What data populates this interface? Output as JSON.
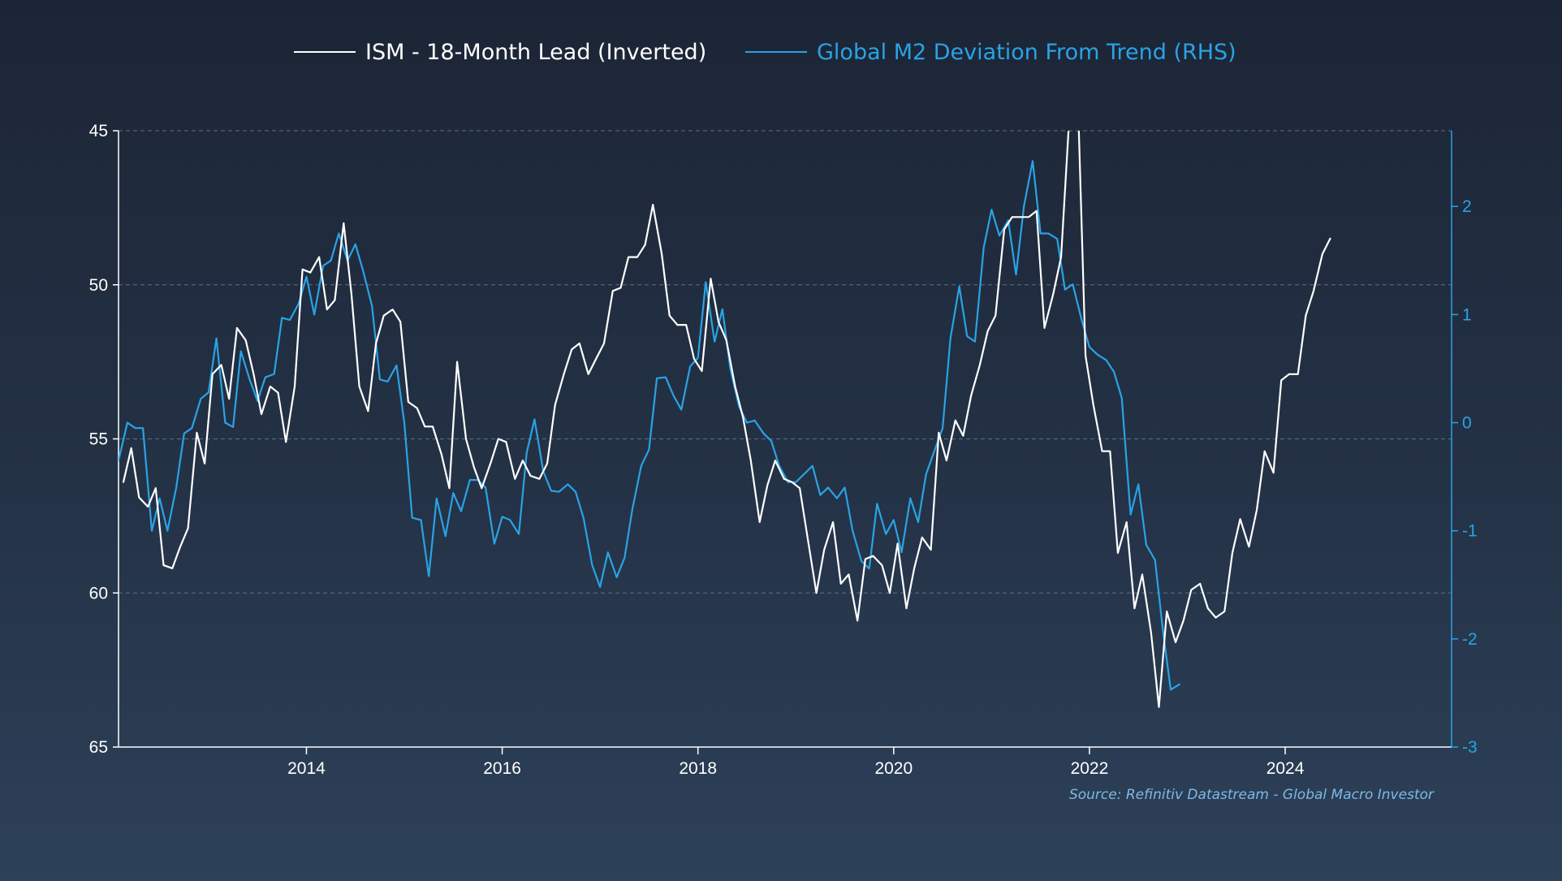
{
  "colors": {
    "ism": "#ffffff",
    "m2": "#29a3e6",
    "axis_left": "#ffffff",
    "axis_right": "#29a3e6",
    "grid": "#5f6f83",
    "source": "#7fb8e6"
  },
  "chart_data": {
    "type": "line",
    "legend": [
      {
        "label": "ISM - 18-Month Lead (Inverted)",
        "color": "#ffffff"
      },
      {
        "label": "Global M2 Deviation From Trend (RHS)",
        "color": "#29a3e6"
      }
    ],
    "source": "Source: Refinitiv Datastream - Global Macro Investor",
    "x_axis": {
      "range": [
        2012.08,
        2025.7
      ],
      "ticks": [
        "2014",
        "2016",
        "2018",
        "2020",
        "2022",
        "2024"
      ]
    },
    "y_left": {
      "range": [
        45,
        65
      ],
      "inverted": true,
      "ticks": [
        "45",
        "50",
        "55",
        "60",
        "65"
      ],
      "grid": true
    },
    "y_right": {
      "range": [
        -3,
        2.7
      ],
      "ticks": [
        "2",
        "1",
        "0",
        "-1",
        "-2",
        "-3"
      ]
    },
    "series": [
      {
        "name": "ISM - 18-Month Lead (Inverted)",
        "axis": "left",
        "points": [
          [
            2012.13,
            56.4
          ],
          [
            2012.21,
            55.3
          ],
          [
            2012.29,
            56.9
          ],
          [
            2012.38,
            57.2
          ],
          [
            2012.46,
            56.6
          ],
          [
            2012.54,
            59.1
          ],
          [
            2012.63,
            59.2
          ],
          [
            2012.71,
            58.5
          ],
          [
            2012.79,
            57.9
          ],
          [
            2012.88,
            54.8
          ],
          [
            2012.96,
            55.8
          ],
          [
            2013.04,
            52.9
          ],
          [
            2013.13,
            52.6
          ],
          [
            2013.21,
            53.7
          ],
          [
            2013.29,
            51.4
          ],
          [
            2013.38,
            51.8
          ],
          [
            2013.46,
            52.9
          ],
          [
            2013.54,
            54.2
          ],
          [
            2013.63,
            53.3
          ],
          [
            2013.71,
            53.5
          ],
          [
            2013.79,
            55.1
          ],
          [
            2013.88,
            53.3
          ],
          [
            2013.96,
            49.5
          ],
          [
            2014.04,
            49.6
          ],
          [
            2014.13,
            49.1
          ],
          [
            2014.21,
            50.8
          ],
          [
            2014.29,
            50.5
          ],
          [
            2014.38,
            48.0
          ],
          [
            2014.46,
            50.3
          ],
          [
            2014.54,
            53.3
          ],
          [
            2014.63,
            54.1
          ],
          [
            2014.71,
            51.9
          ],
          [
            2014.79,
            51.0
          ],
          [
            2014.88,
            50.8
          ],
          [
            2014.96,
            51.2
          ],
          [
            2015.04,
            53.8
          ],
          [
            2015.13,
            54.0
          ],
          [
            2015.21,
            54.6
          ],
          [
            2015.29,
            54.6
          ],
          [
            2015.38,
            55.5
          ],
          [
            2015.46,
            56.6
          ],
          [
            2015.54,
            52.5
          ],
          [
            2015.63,
            55.0
          ],
          [
            2015.71,
            55.9
          ],
          [
            2015.79,
            56.6
          ],
          [
            2015.88,
            55.8
          ],
          [
            2015.96,
            55.0
          ],
          [
            2016.04,
            55.1
          ],
          [
            2016.13,
            56.3
          ],
          [
            2016.21,
            55.7
          ],
          [
            2016.29,
            56.2
          ],
          [
            2016.38,
            56.3
          ],
          [
            2016.46,
            55.8
          ],
          [
            2016.54,
            53.9
          ],
          [
            2016.63,
            52.9
          ],
          [
            2016.71,
            52.1
          ],
          [
            2016.79,
            51.9
          ],
          [
            2016.88,
            52.9
          ],
          [
            2016.96,
            52.4
          ],
          [
            2017.04,
            51.9
          ],
          [
            2017.13,
            50.2
          ],
          [
            2017.21,
            50.1
          ],
          [
            2017.29,
            49.1
          ],
          [
            2017.38,
            49.1
          ],
          [
            2017.46,
            48.7
          ],
          [
            2017.54,
            47.4
          ],
          [
            2017.63,
            49.0
          ],
          [
            2017.71,
            51.0
          ],
          [
            2017.79,
            51.3
          ],
          [
            2017.88,
            51.3
          ],
          [
            2017.96,
            52.4
          ],
          [
            2018.04,
            52.8
          ],
          [
            2018.13,
            49.8
          ],
          [
            2018.21,
            51.2
          ],
          [
            2018.29,
            51.8
          ],
          [
            2018.38,
            53.3
          ],
          [
            2018.46,
            54.3
          ],
          [
            2018.54,
            55.7
          ],
          [
            2018.63,
            57.7
          ],
          [
            2018.71,
            56.5
          ],
          [
            2018.79,
            55.7
          ],
          [
            2018.88,
            56.3
          ],
          [
            2018.96,
            56.4
          ],
          [
            2019.04,
            56.6
          ],
          [
            2019.13,
            58.4
          ],
          [
            2019.21,
            60.0
          ],
          [
            2019.29,
            58.6
          ],
          [
            2019.38,
            57.7
          ],
          [
            2019.46,
            59.7
          ],
          [
            2019.54,
            59.4
          ],
          [
            2019.63,
            60.9
          ],
          [
            2019.71,
            58.9
          ],
          [
            2019.79,
            58.8
          ],
          [
            2019.88,
            59.1
          ],
          [
            2019.96,
            60.0
          ],
          [
            2020.04,
            58.4
          ],
          [
            2020.13,
            60.5
          ],
          [
            2020.21,
            59.2
          ],
          [
            2020.29,
            58.2
          ],
          [
            2020.38,
            58.6
          ],
          [
            2020.46,
            54.8
          ],
          [
            2020.54,
            55.7
          ],
          [
            2020.63,
            54.4
          ],
          [
            2020.71,
            54.9
          ],
          [
            2020.79,
            53.6
          ],
          [
            2020.88,
            52.6
          ],
          [
            2020.96,
            51.5
          ],
          [
            2021.04,
            51.0
          ],
          [
            2021.13,
            48.2
          ],
          [
            2021.21,
            47.8
          ],
          [
            2021.29,
            47.8
          ],
          [
            2021.38,
            47.8
          ],
          [
            2021.46,
            47.6
          ],
          [
            2021.54,
            51.4
          ],
          [
            2021.63,
            50.3
          ],
          [
            2021.71,
            49.1
          ],
          [
            2021.79,
            44.8
          ],
          [
            2021.88,
            43.8
          ],
          [
            2021.96,
            52.3
          ],
          [
            2022.04,
            53.9
          ],
          [
            2022.13,
            55.4
          ],
          [
            2022.21,
            55.4
          ],
          [
            2022.29,
            58.7
          ],
          [
            2022.38,
            57.7
          ],
          [
            2022.46,
            60.5
          ],
          [
            2022.54,
            59.4
          ],
          [
            2022.63,
            61.3
          ],
          [
            2022.71,
            63.7
          ],
          [
            2022.79,
            60.6
          ],
          [
            2022.88,
            61.6
          ],
          [
            2022.96,
            60.9
          ],
          [
            2023.04,
            59.9
          ],
          [
            2023.13,
            59.7
          ],
          [
            2023.21,
            60.5
          ],
          [
            2023.29,
            60.8
          ],
          [
            2023.38,
            60.6
          ],
          [
            2023.46,
            58.7
          ],
          [
            2023.54,
            57.6
          ],
          [
            2023.63,
            58.5
          ],
          [
            2023.71,
            57.3
          ],
          [
            2023.79,
            55.4
          ],
          [
            2023.88,
            56.1
          ],
          [
            2023.96,
            53.1
          ],
          [
            2024.04,
            52.9
          ],
          [
            2024.13,
            52.9
          ],
          [
            2024.21,
            51.0
          ],
          [
            2024.29,
            50.2
          ],
          [
            2024.38,
            49.0
          ],
          [
            2024.46,
            48.5
          ]
        ]
      },
      {
        "name": "Global M2 Deviation From Trend (RHS)",
        "axis": "right",
        "points": [
          [
            2012.08,
            -0.35
          ],
          [
            2012.17,
            0.0
          ],
          [
            2012.25,
            -0.05
          ],
          [
            2012.33,
            -0.05
          ],
          [
            2012.42,
            -1.0
          ],
          [
            2012.5,
            -0.7
          ],
          [
            2012.58,
            -1.0
          ],
          [
            2012.67,
            -0.6
          ],
          [
            2012.75,
            -0.1
          ],
          [
            2012.83,
            -0.05
          ],
          [
            2012.92,
            0.22
          ],
          [
            2013.0,
            0.28
          ],
          [
            2013.08,
            0.78
          ],
          [
            2013.17,
            0.0
          ],
          [
            2013.25,
            -0.04
          ],
          [
            2013.33,
            0.66
          ],
          [
            2013.42,
            0.4
          ],
          [
            2013.5,
            0.2
          ],
          [
            2013.58,
            0.42
          ],
          [
            2013.67,
            0.45
          ],
          [
            2013.75,
            0.97
          ],
          [
            2013.83,
            0.95
          ],
          [
            2013.92,
            1.1
          ],
          [
            2014.0,
            1.35
          ],
          [
            2014.08,
            1.0
          ],
          [
            2014.17,
            1.45
          ],
          [
            2014.25,
            1.5
          ],
          [
            2014.33,
            1.75
          ],
          [
            2014.42,
            1.5
          ],
          [
            2014.5,
            1.65
          ],
          [
            2014.58,
            1.4
          ],
          [
            2014.67,
            1.08
          ],
          [
            2014.75,
            0.4
          ],
          [
            2014.83,
            0.38
          ],
          [
            2014.92,
            0.53
          ],
          [
            2015.0,
            0.0
          ],
          [
            2015.08,
            -0.88
          ],
          [
            2015.17,
            -0.9
          ],
          [
            2015.25,
            -1.42
          ],
          [
            2015.33,
            -0.7
          ],
          [
            2015.42,
            -1.05
          ],
          [
            2015.5,
            -0.65
          ],
          [
            2015.58,
            -0.82
          ],
          [
            2015.67,
            -0.53
          ],
          [
            2015.75,
            -0.53
          ],
          [
            2015.83,
            -0.6
          ],
          [
            2015.92,
            -1.12
          ],
          [
            2016.0,
            -0.87
          ],
          [
            2016.08,
            -0.9
          ],
          [
            2016.17,
            -1.03
          ],
          [
            2016.25,
            -0.28
          ],
          [
            2016.33,
            0.03
          ],
          [
            2016.42,
            -0.45
          ],
          [
            2016.5,
            -0.63
          ],
          [
            2016.58,
            -0.64
          ],
          [
            2016.67,
            -0.57
          ],
          [
            2016.75,
            -0.64
          ],
          [
            2016.83,
            -0.88
          ],
          [
            2016.92,
            -1.32
          ],
          [
            2017.0,
            -1.52
          ],
          [
            2017.08,
            -1.2
          ],
          [
            2017.17,
            -1.43
          ],
          [
            2017.25,
            -1.25
          ],
          [
            2017.33,
            -0.8
          ],
          [
            2017.42,
            -0.4
          ],
          [
            2017.5,
            -0.25
          ],
          [
            2017.58,
            0.41
          ],
          [
            2017.67,
            0.42
          ],
          [
            2017.75,
            0.25
          ],
          [
            2017.83,
            0.12
          ],
          [
            2017.92,
            0.52
          ],
          [
            2018.0,
            0.6
          ],
          [
            2018.08,
            1.3
          ],
          [
            2018.17,
            0.75
          ],
          [
            2018.25,
            1.05
          ],
          [
            2018.33,
            0.5
          ],
          [
            2018.42,
            0.15
          ],
          [
            2018.5,
            0.0
          ],
          [
            2018.58,
            0.02
          ],
          [
            2018.67,
            -0.1
          ],
          [
            2018.75,
            -0.17
          ],
          [
            2018.83,
            -0.4
          ],
          [
            2018.92,
            -0.55
          ],
          [
            2019.0,
            -0.55
          ],
          [
            2019.08,
            -0.48
          ],
          [
            2019.17,
            -0.4
          ],
          [
            2019.25,
            -0.67
          ],
          [
            2019.33,
            -0.6
          ],
          [
            2019.42,
            -0.7
          ],
          [
            2019.5,
            -0.6
          ],
          [
            2019.58,
            -1.0
          ],
          [
            2019.67,
            -1.28
          ],
          [
            2019.75,
            -1.35
          ],
          [
            2019.83,
            -0.75
          ],
          [
            2019.92,
            -1.03
          ],
          [
            2020.0,
            -0.9
          ],
          [
            2020.08,
            -1.2
          ],
          [
            2020.17,
            -0.7
          ],
          [
            2020.25,
            -0.92
          ],
          [
            2020.33,
            -0.48
          ],
          [
            2020.42,
            -0.25
          ],
          [
            2020.5,
            -0.05
          ],
          [
            2020.58,
            0.78
          ],
          [
            2020.67,
            1.26
          ],
          [
            2020.75,
            0.8
          ],
          [
            2020.83,
            0.75
          ],
          [
            2020.92,
            1.62
          ],
          [
            2021.0,
            1.97
          ],
          [
            2021.08,
            1.73
          ],
          [
            2021.17,
            1.87
          ],
          [
            2021.25,
            1.37
          ],
          [
            2021.33,
            2.0
          ],
          [
            2021.42,
            2.42
          ],
          [
            2021.5,
            1.75
          ],
          [
            2021.58,
            1.75
          ],
          [
            2021.67,
            1.7
          ],
          [
            2021.75,
            1.23
          ],
          [
            2021.83,
            1.28
          ],
          [
            2021.92,
            0.95
          ],
          [
            2022.0,
            0.7
          ],
          [
            2022.08,
            0.63
          ],
          [
            2022.17,
            0.58
          ],
          [
            2022.25,
            0.47
          ],
          [
            2022.33,
            0.23
          ],
          [
            2022.42,
            -0.85
          ],
          [
            2022.5,
            -0.57
          ],
          [
            2022.58,
            -1.13
          ],
          [
            2022.67,
            -1.27
          ],
          [
            2022.75,
            -1.92
          ],
          [
            2022.83,
            -2.47
          ],
          [
            2022.92,
            -2.42
          ]
        ]
      }
    ]
  }
}
